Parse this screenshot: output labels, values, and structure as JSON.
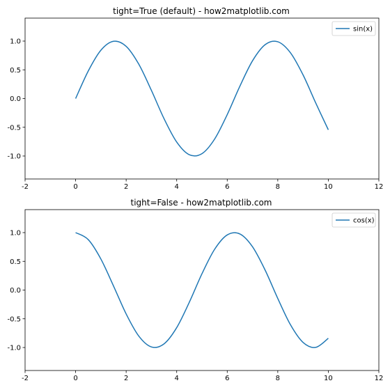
{
  "chart_data": [
    {
      "type": "line",
      "title": "tight=True (default) - how2matplotlib.com",
      "xlabel": "",
      "ylabel": "",
      "xlim": [
        -2,
        12
      ],
      "ylim": [
        -1.4,
        1.4
      ],
      "xticks": [
        -2,
        0,
        2,
        4,
        6,
        8,
        10,
        12
      ],
      "yticks": [
        -1.0,
        -0.5,
        0.0,
        0.5,
        1.0
      ],
      "xtick_labels": [
        "-2",
        "0",
        "2",
        "4",
        "6",
        "8",
        "10",
        "12"
      ],
      "ytick_labels": [
        "-1.0",
        "-0.5",
        "0.0",
        "0.5",
        "1.0"
      ],
      "grid": false,
      "legend_position": "upper right",
      "series": [
        {
          "name": "sin(x)",
          "color": "#1f77b4",
          "x": [
            0,
            0.5,
            1.0,
            1.5,
            2.0,
            2.5,
            3.0,
            3.5,
            4.0,
            4.5,
            5.0,
            5.5,
            6.0,
            6.5,
            7.0,
            7.5,
            8.0,
            8.5,
            9.0,
            9.5,
            10.0
          ],
          "y": [
            0.0,
            0.479,
            0.841,
            0.997,
            0.909,
            0.598,
            0.141,
            -0.351,
            -0.757,
            -0.978,
            -0.959,
            -0.706,
            -0.279,
            0.215,
            0.657,
            0.938,
            0.989,
            0.798,
            0.412,
            -0.075,
            -0.544
          ]
        }
      ]
    },
    {
      "type": "line",
      "title": "tight=False - how2matplotlib.com",
      "xlabel": "",
      "ylabel": "",
      "xlim": [
        -2,
        12
      ],
      "ylim": [
        -1.4,
        1.4
      ],
      "xticks": [
        -2,
        0,
        2,
        4,
        6,
        8,
        10,
        12
      ],
      "yticks": [
        -1.0,
        -0.5,
        0.0,
        0.5,
        1.0
      ],
      "xtick_labels": [
        "-2",
        "0",
        "2",
        "4",
        "6",
        "8",
        "10",
        "12"
      ],
      "ytick_labels": [
        "-1.0",
        "-0.5",
        "0.0",
        "0.5",
        "1.0"
      ],
      "grid": false,
      "legend_position": "upper right",
      "series": [
        {
          "name": "cos(x)",
          "color": "#1f77b4",
          "x": [
            0,
            0.5,
            1.0,
            1.5,
            2.0,
            2.5,
            3.0,
            3.5,
            4.0,
            4.5,
            5.0,
            5.5,
            6.0,
            6.5,
            7.0,
            7.5,
            8.0,
            8.5,
            9.0,
            9.5,
            10.0
          ],
          "y": [
            1.0,
            0.878,
            0.54,
            0.071,
            -0.416,
            -0.801,
            -0.99,
            -0.936,
            -0.654,
            -0.211,
            0.284,
            0.709,
            0.96,
            0.977,
            0.754,
            0.347,
            -0.146,
            -0.602,
            -0.911,
            -0.997,
            -0.839
          ]
        }
      ]
    }
  ]
}
